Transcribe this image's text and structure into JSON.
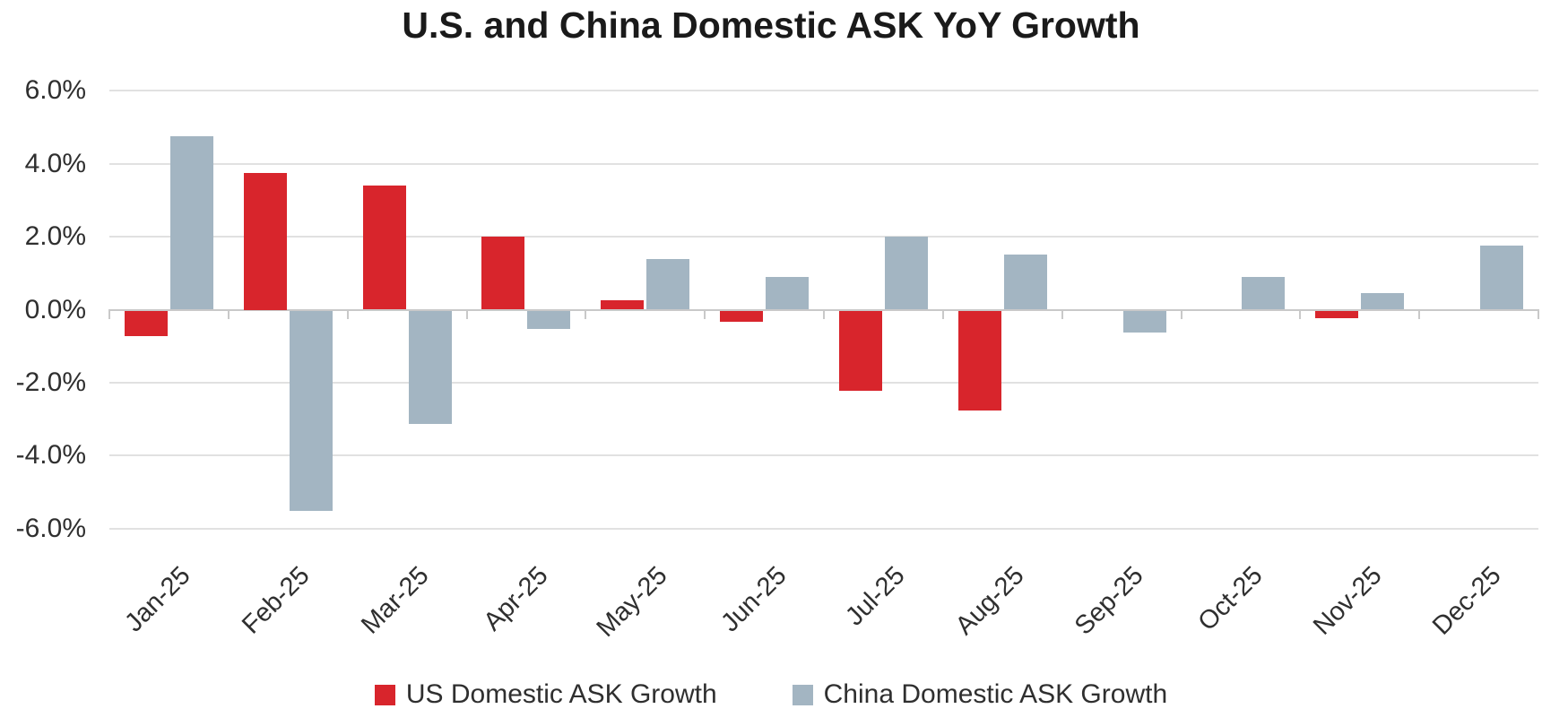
{
  "title": "U.S. and China Domestic ASK YoY Growth",
  "chart_data": {
    "type": "bar",
    "title": "U.S. and China Domestic ASK YoY Growth",
    "categories": [
      "Jan-25",
      "Feb-25",
      "Mar-25",
      "Apr-25",
      "May-25",
      "Jun-25",
      "Jul-25",
      "Aug-25",
      "Sep-25",
      "Oct-25",
      "Nov-25",
      "Dec-25"
    ],
    "series": [
      {
        "name": "US Domestic ASK Growth",
        "color": "#d8252c",
        "unit": "percent",
        "values": [
          -0.7,
          3.75,
          3.4,
          2.0,
          0.25,
          -0.3,
          -2.2,
          -2.75,
          0.0,
          0.0,
          -0.2,
          0.0
        ]
      },
      {
        "name": "China Domestic ASK Growth",
        "color": "#a3b5c2",
        "unit": "percent",
        "values": [
          4.75,
          -5.5,
          -3.1,
          -0.5,
          1.4,
          0.9,
          2.0,
          1.5,
          -0.6,
          0.9,
          0.45,
          1.75
        ]
      }
    ],
    "xlabel": "",
    "ylabel": "",
    "ylim": [
      -6,
      6
    ],
    "yticks": [
      {
        "value": 6,
        "label": "6.0%"
      },
      {
        "value": 4,
        "label": "4.0%"
      },
      {
        "value": 2,
        "label": "2.0%"
      },
      {
        "value": 0,
        "label": "0.0%"
      },
      {
        "value": -2,
        "label": "-2.0%"
      },
      {
        "value": -4,
        "label": "-4.0%"
      },
      {
        "value": -6,
        "label": "-6.0%"
      }
    ],
    "grid": true,
    "legend_position": "bottom"
  },
  "colors": {
    "background": "#ffffff",
    "title_text": "#1a1a1a",
    "axis_text": "#2f2f2f",
    "legend_text": "#2f2f2f",
    "gridline": "#e1e1e1",
    "axis_line": "#c9c9c9",
    "tick": "#c9c9c9"
  }
}
